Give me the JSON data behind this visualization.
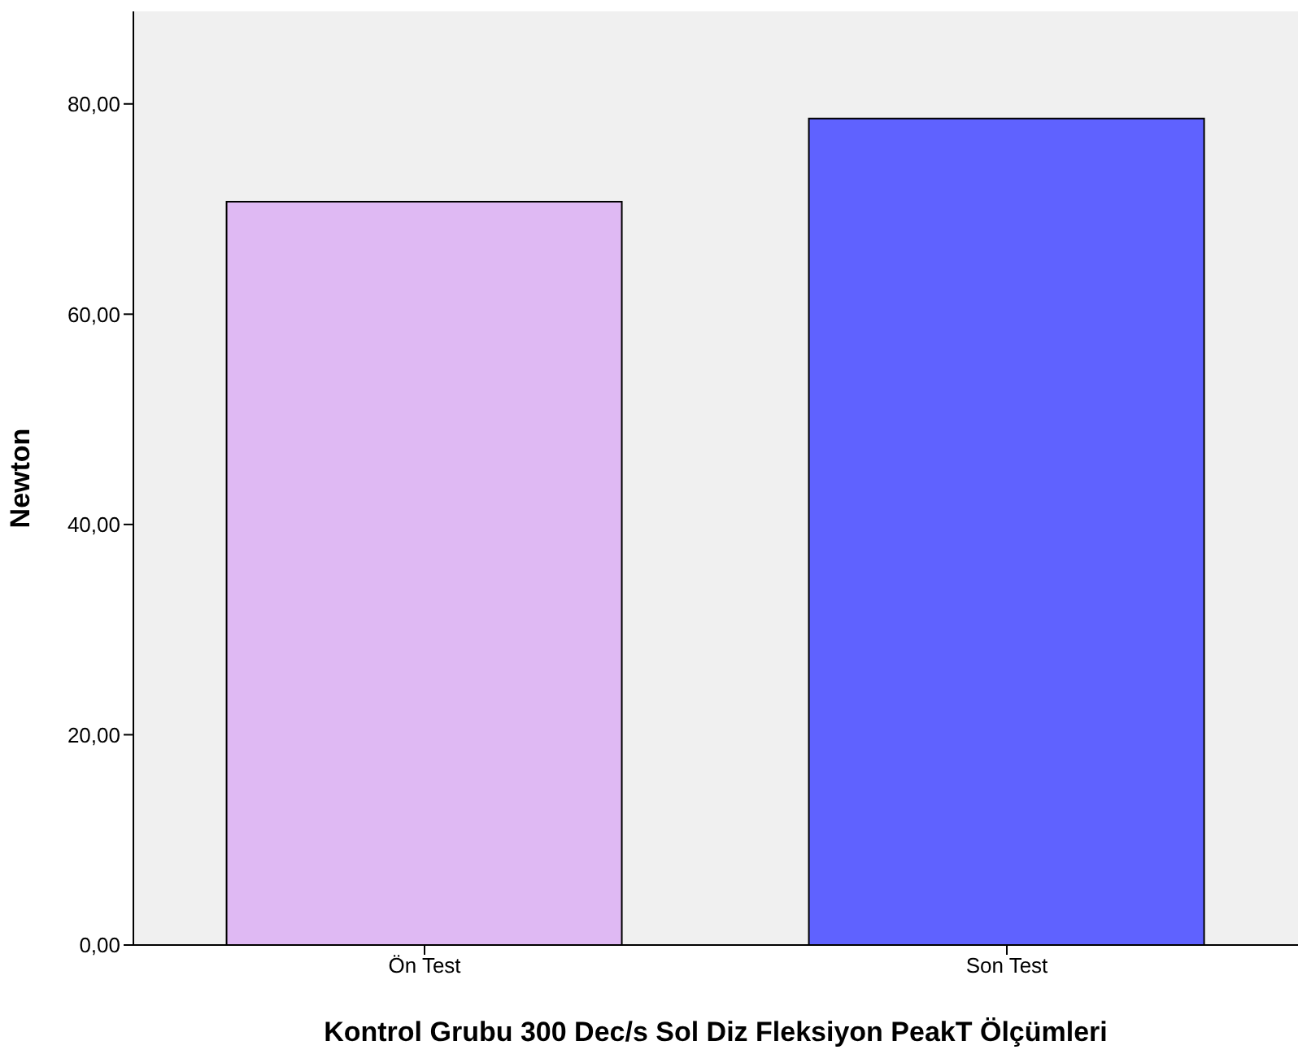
{
  "chart_data": {
    "type": "bar",
    "xlabel": "Kontrol Grubu 300 Dec/s Sol Diz Fleksiyon PeakT Ölçümleri",
    "ylabel": "Newton",
    "categories": [
      "Ön Test",
      "Son Test"
    ],
    "values": [
      70.7,
      78.6
    ],
    "colors": [
      "#dfb9f3",
      "#5f62ff"
    ],
    "ylim": [
      0,
      88.8
    ],
    "yticks": [
      {
        "value": 0,
        "label": "0,00"
      },
      {
        "value": 20,
        "label": "20,00"
      },
      {
        "value": 40,
        "label": "40,00"
      },
      {
        "value": 60,
        "label": "60,00"
      },
      {
        "value": 80,
        "label": "80,00"
      }
    ],
    "grid": false,
    "legend": false
  }
}
